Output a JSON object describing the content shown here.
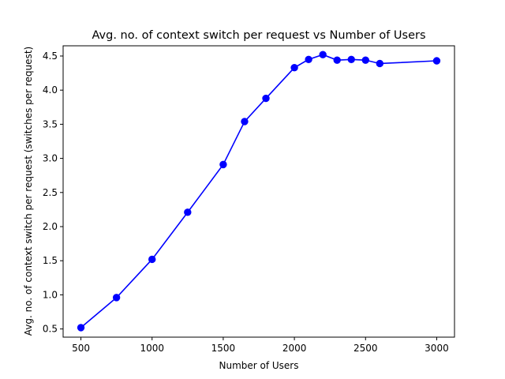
{
  "chart_data": {
    "type": "line",
    "title": "Avg. no. of context switch per request vs Number of Users",
    "xlabel": "Number of Users",
    "ylabel": "Avg. no. of context switch per request (switches per request)",
    "xlim": [
      375,
      3125
    ],
    "ylim": [
      0.38,
      4.65
    ],
    "xticks": [
      500,
      1000,
      1500,
      2000,
      2500,
      3000
    ],
    "yticks": [
      0.5,
      1.0,
      1.5,
      2.0,
      2.5,
      3.0,
      3.5,
      4.0,
      4.5
    ],
    "grid": false,
    "series": [
      {
        "color": "#0000ff",
        "marker": "circle",
        "x": [
          500,
          750,
          1000,
          1250,
          1500,
          1650,
          1800,
          2000,
          2100,
          2200,
          2300,
          2400,
          2500,
          2600,
          3000
        ],
        "y": [
          0.52,
          0.96,
          1.52,
          2.21,
          2.91,
          3.54,
          3.88,
          4.33,
          4.45,
          4.52,
          4.44,
          4.45,
          4.44,
          4.39,
          4.43
        ]
      }
    ]
  }
}
